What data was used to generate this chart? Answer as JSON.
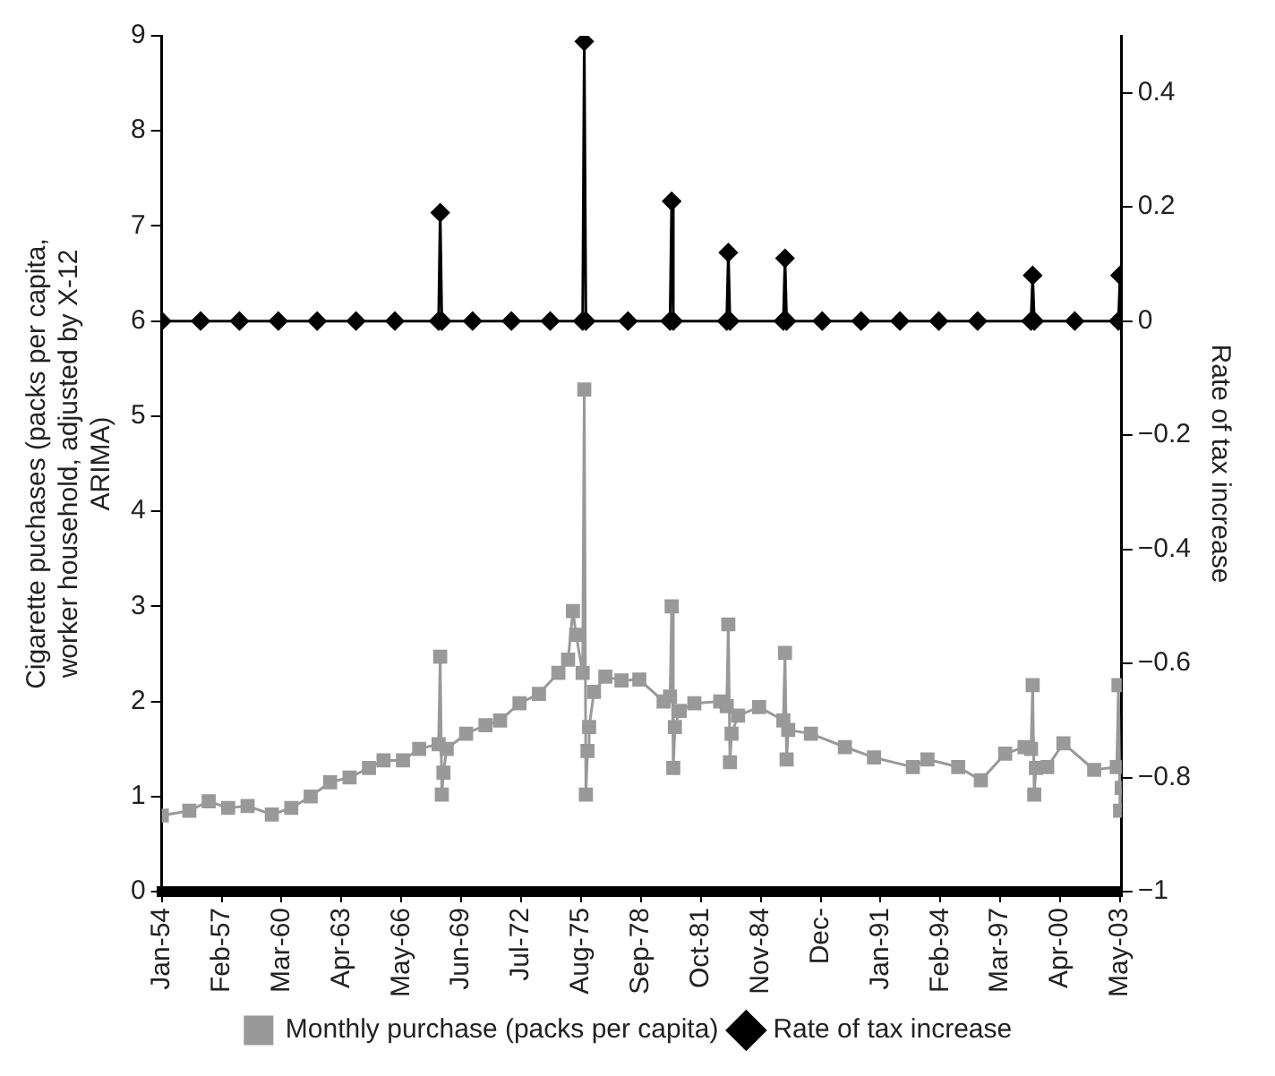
{
  "chart_data": {
    "type": "line",
    "ylabel": "Cigarette puchases (packs per capita, worker household, adjusted by X-12 ARIMA)",
    "y2label": "Rate of tax increase",
    "xlim": [
      "1954-01",
      "2003-06"
    ],
    "xticks": [
      {
        "value": "1954-01",
        "label": "Jan-54"
      },
      {
        "value": "1957-02",
        "label": "Feb-57"
      },
      {
        "value": "1960-03",
        "label": "Mar-60"
      },
      {
        "value": "1963-04",
        "label": "Apr-63"
      },
      {
        "value": "1966-05",
        "label": "May-66"
      },
      {
        "value": "1969-06",
        "label": "Jun-69"
      },
      {
        "value": "1972-07",
        "label": "Jul-72"
      },
      {
        "value": "1975-08",
        "label": "Aug-75"
      },
      {
        "value": "1978-09",
        "label": "Sep-78"
      },
      {
        "value": "1981-10",
        "label": "Oct-81"
      },
      {
        "value": "1984-11",
        "label": "Nov-84"
      },
      {
        "value": "1987-12",
        "label": "Dec-"
      },
      {
        "value": "1991-01",
        "label": "Jan-91"
      },
      {
        "value": "1994-02",
        "label": "Feb-94"
      },
      {
        "value": "1997-03",
        "label": "Mar-97"
      },
      {
        "value": "2000-04",
        "label": "Apr-00"
      },
      {
        "value": "2003-05",
        "label": "May-03"
      }
    ],
    "ylim": [
      0,
      9
    ],
    "yticks": [
      0,
      1,
      2,
      3,
      4,
      5,
      6,
      7,
      8,
      9
    ],
    "y2lim": [
      -1,
      0.5
    ],
    "y2ticks": [
      {
        "value": -1,
        "label": "−1"
      },
      {
        "value": -0.8,
        "label": "−0.8"
      },
      {
        "value": -0.6,
        "label": "−0.6"
      },
      {
        "value": -0.4,
        "label": "−0.4"
      },
      {
        "value": -0.2,
        "label": "−0.2"
      },
      0,
      0.2,
      0.4
    ],
    "grid": false,
    "legend": "bottom",
    "series": [
      {
        "name": "Monthly purchase (packs per capita)",
        "color": "#999999",
        "marker": "square",
        "x": [
          "1954-01",
          "1955-06",
          "1956-06",
          "1957-06",
          "1958-06",
          "1959-09",
          "1960-09",
          "1961-09",
          "1962-09",
          "1963-09",
          "1964-09",
          "1965-06",
          "1966-06",
          "1967-04",
          "1968-04",
          "1968-05",
          "1968-06",
          "1968-07",
          "1968-09",
          "1969-09",
          "1970-09",
          "1971-06",
          "1972-06",
          "1973-06",
          "1974-06",
          "1974-12",
          "1975-03",
          "1975-05",
          "1975-09",
          "1975-10",
          "1975-11",
          "1975-12",
          "1976-01",
          "1976-04",
          "1976-11",
          "1977-09",
          "1978-08",
          "1979-11",
          "1980-03",
          "1980-04",
          "1980-05",
          "1980-06",
          "1980-09",
          "1981-06",
          "1982-10",
          "1983-02",
          "1983-03",
          "1983-04",
          "1983-05",
          "1983-09",
          "1984-10",
          "1986-01",
          "1986-02",
          "1986-03",
          "1986-04",
          "1987-06",
          "1989-03",
          "1990-09",
          "1992-09",
          "1993-06",
          "1995-01",
          "1996-03",
          "1997-06",
          "1998-06",
          "1998-10",
          "1998-11",
          "1998-12",
          "1999-01",
          "1999-08",
          "2000-06",
          "2002-01",
          "2003-03",
          "2003-04",
          "2003-05",
          "2003-06"
        ],
        "values": [
          0.8,
          0.85,
          0.95,
          0.88,
          0.9,
          0.81,
          0.88,
          1.0,
          1.15,
          1.2,
          1.3,
          1.38,
          1.38,
          1.5,
          1.55,
          2.47,
          1.02,
          1.25,
          1.5,
          1.66,
          1.75,
          1.8,
          1.98,
          2.08,
          2.3,
          2.44,
          2.95,
          2.7,
          2.3,
          5.28,
          1.02,
          1.48,
          1.73,
          2.1,
          2.26,
          2.22,
          2.23,
          2.0,
          2.05,
          3.0,
          1.3,
          1.73,
          1.9,
          1.98,
          2.0,
          1.95,
          2.81,
          1.36,
          1.66,
          1.85,
          1.94,
          1.8,
          2.51,
          1.39,
          1.7,
          1.66,
          1.52,
          1.41,
          1.31,
          1.39,
          1.31,
          1.17,
          1.45,
          1.52,
          1.5,
          2.17,
          1.02,
          1.3,
          1.31,
          1.56,
          1.28,
          1.31,
          2.17,
          0.85,
          1.09
        ]
      },
      {
        "name": "Rate of tax increase",
        "color": "#000000",
        "marker": "diamond",
        "axis": "y2",
        "x": [
          "1954-01",
          "1956-01",
          "1958-01",
          "1960-01",
          "1962-01",
          "1964-01",
          "1966-01",
          "1968-04",
          "1968-05",
          "1968-06",
          "1970-01",
          "1972-01",
          "1974-01",
          "1975-09",
          "1975-10",
          "1975-11",
          "1978-01",
          "1980-03",
          "1980-04",
          "1980-05",
          "1983-02",
          "1983-03",
          "1983-04",
          "1986-01",
          "1986-02",
          "1986-03",
          "1988-01",
          "1990-01",
          "1992-01",
          "1994-01",
          "1996-01",
          "1998-10",
          "1998-11",
          "1998-12",
          "2001-01",
          "2003-04",
          "2003-05"
        ],
        "values": [
          0,
          0,
          0,
          0,
          0,
          0,
          0,
          0,
          0.19,
          0,
          0,
          0,
          0,
          0,
          0.49,
          0,
          0,
          0,
          0.21,
          0,
          0,
          0.12,
          0,
          0,
          0.11,
          0,
          0,
          0,
          0,
          0,
          0,
          0,
          0.08,
          0,
          0,
          0,
          0.08
        ]
      }
    ]
  }
}
